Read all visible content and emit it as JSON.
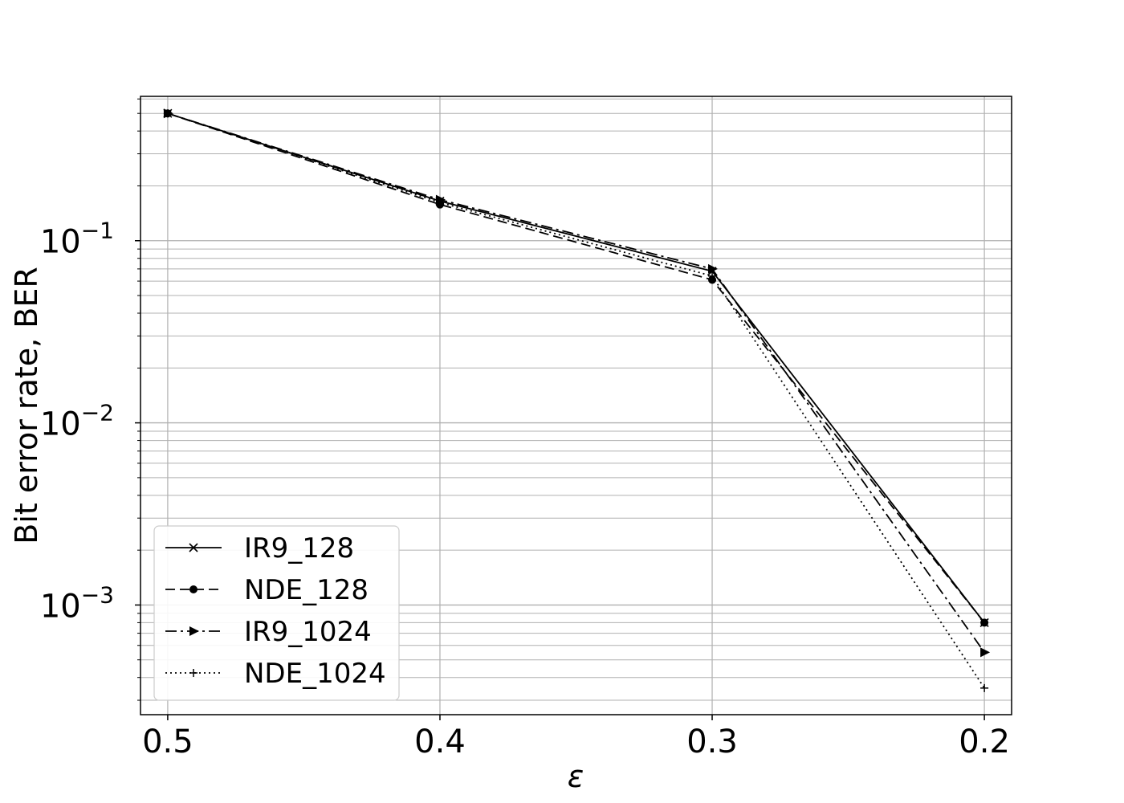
{
  "chart_data": {
    "type": "line",
    "xlabel": "ε",
    "ylabel": "Bit error rate, BER",
    "x": [
      0.5,
      0.4,
      0.3,
      0.2
    ],
    "x_ticks": [
      {
        "value": 0.5,
        "label": "0.5"
      },
      {
        "value": 0.4,
        "label": "0.4"
      },
      {
        "value": 0.3,
        "label": "0.3"
      },
      {
        "value": 0.2,
        "label": "0.2"
      }
    ],
    "xlim": [
      0.51,
      0.19
    ],
    "x_reversed": true,
    "y_scale": "log",
    "ylim": [
      0.00025,
      0.62
    ],
    "y_ticks": [
      {
        "value": 0.1,
        "base": "10",
        "exp": "−1"
      },
      {
        "value": 0.01,
        "base": "10",
        "exp": "−2"
      },
      {
        "value": 0.001,
        "base": "10",
        "exp": "−3"
      }
    ],
    "grid": true,
    "legend_position": "lower-left",
    "series": [
      {
        "name": "IR9_128",
        "values": [
          0.5,
          0.165,
          0.068,
          0.0008
        ],
        "color": "#000000",
        "dash": "solid",
        "marker": "x"
      },
      {
        "name": "NDE_128",
        "values": [
          0.5,
          0.158,
          0.061,
          0.0008
        ],
        "color": "#000000",
        "dash": "dashed",
        "marker": "circle"
      },
      {
        "name": "IR9_1024",
        "values": [
          0.5,
          0.168,
          0.07,
          0.00055
        ],
        "color": "#000000",
        "dash": "dashdot",
        "marker": "triangle-right"
      },
      {
        "name": "NDE_1024",
        "values": [
          0.5,
          0.162,
          0.064,
          0.00035
        ],
        "color": "#000000",
        "dash": "dotted",
        "marker": "plus"
      }
    ]
  }
}
